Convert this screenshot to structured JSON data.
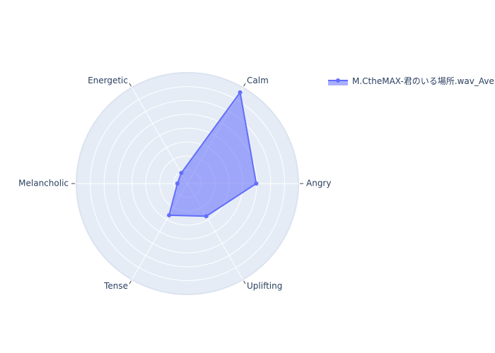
{
  "chart_data": {
    "type": "radar",
    "axes": [
      "Angry",
      "Calm",
      "Energetic",
      "Melancholic",
      "Tense",
      "Uplifting"
    ],
    "rlim": [
      0,
      1
    ],
    "grid": true,
    "legend_position": "top-right",
    "series": [
      {
        "name": "M.CtheMAX-君のいる場所.wav_Average",
        "values": [
          0.62,
          0.95,
          0.11,
          0.09,
          0.33,
          0.34
        ],
        "color": "#636efa",
        "fill_color": "rgba(99,110,250,0.55)"
      }
    ]
  }
}
